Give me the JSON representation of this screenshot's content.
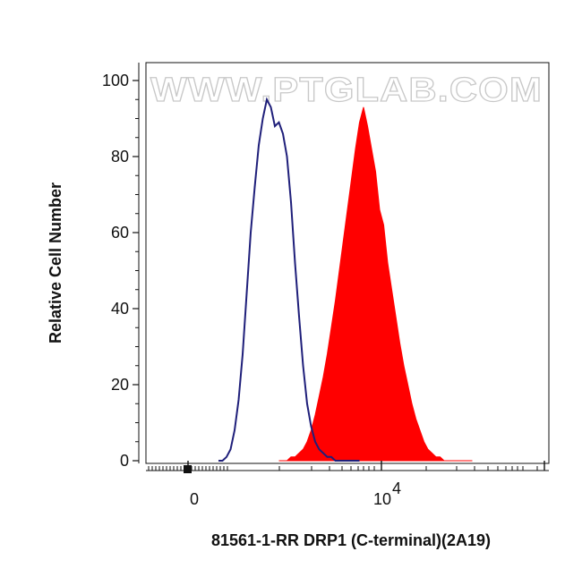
{
  "watermark": "WWW.PTGLAB.COM",
  "chart_data": {
    "type": "area",
    "xlabel": "81561-1-RR DRP1 (C-terminal)(2A19)",
    "ylabel": "Relative Cell Number",
    "ylim": [
      0,
      100
    ],
    "yticks": [
      0,
      20,
      40,
      60,
      80,
      100
    ],
    "x_scale": "biexponential",
    "x_tick_labels": [
      {
        "base": "0",
        "exp": ""
      },
      {
        "base": "10",
        "exp": "4"
      }
    ],
    "grid": false,
    "series": [
      {
        "style": "outline",
        "color": "#1f1f7a",
        "x_frac": [
          0.18,
          0.19,
          0.2,
          0.21,
          0.22,
          0.23,
          0.24,
          0.25,
          0.26,
          0.27,
          0.28,
          0.29,
          0.3,
          0.31,
          0.32,
          0.33,
          0.34,
          0.35,
          0.36,
          0.37,
          0.38,
          0.39,
          0.4,
          0.41,
          0.42,
          0.43,
          0.44,
          0.45,
          0.46,
          0.47,
          0.48,
          0.49,
          0.5,
          0.51,
          0.52,
          0.53
        ],
        "values": [
          0,
          0,
          1,
          3,
          8,
          16,
          28,
          44,
          60,
          72,
          83,
          90,
          95,
          93,
          88,
          89,
          86,
          80,
          68,
          52,
          38,
          25,
          15,
          9,
          5,
          3,
          2,
          1,
          1,
          0,
          0,
          0,
          0,
          0,
          0,
          0
        ]
      },
      {
        "style": "filled",
        "color": "#ff0000",
        "x_frac": [
          0.33,
          0.34,
          0.35,
          0.36,
          0.37,
          0.38,
          0.39,
          0.4,
          0.41,
          0.42,
          0.43,
          0.44,
          0.45,
          0.46,
          0.47,
          0.48,
          0.49,
          0.5,
          0.51,
          0.52,
          0.53,
          0.54,
          0.55,
          0.56,
          0.57,
          0.58,
          0.59,
          0.6,
          0.61,
          0.62,
          0.63,
          0.64,
          0.65,
          0.66,
          0.67,
          0.68,
          0.69,
          0.7,
          0.71,
          0.72,
          0.73,
          0.74,
          0.75,
          0.76,
          0.77,
          0.78,
          0.79,
          0.8,
          0.81
        ],
        "values": [
          0,
          0,
          0,
          1,
          1,
          2,
          3,
          5,
          8,
          12,
          17,
          22,
          28,
          35,
          42,
          50,
          58,
          66,
          74,
          82,
          89,
          93,
          88,
          82,
          76,
          66,
          62,
          52,
          45,
          38,
          31,
          25,
          20,
          15,
          11,
          8,
          5,
          3,
          2,
          1,
          1,
          0,
          0,
          0,
          0,
          0,
          0,
          0,
          0
        ]
      }
    ]
  }
}
